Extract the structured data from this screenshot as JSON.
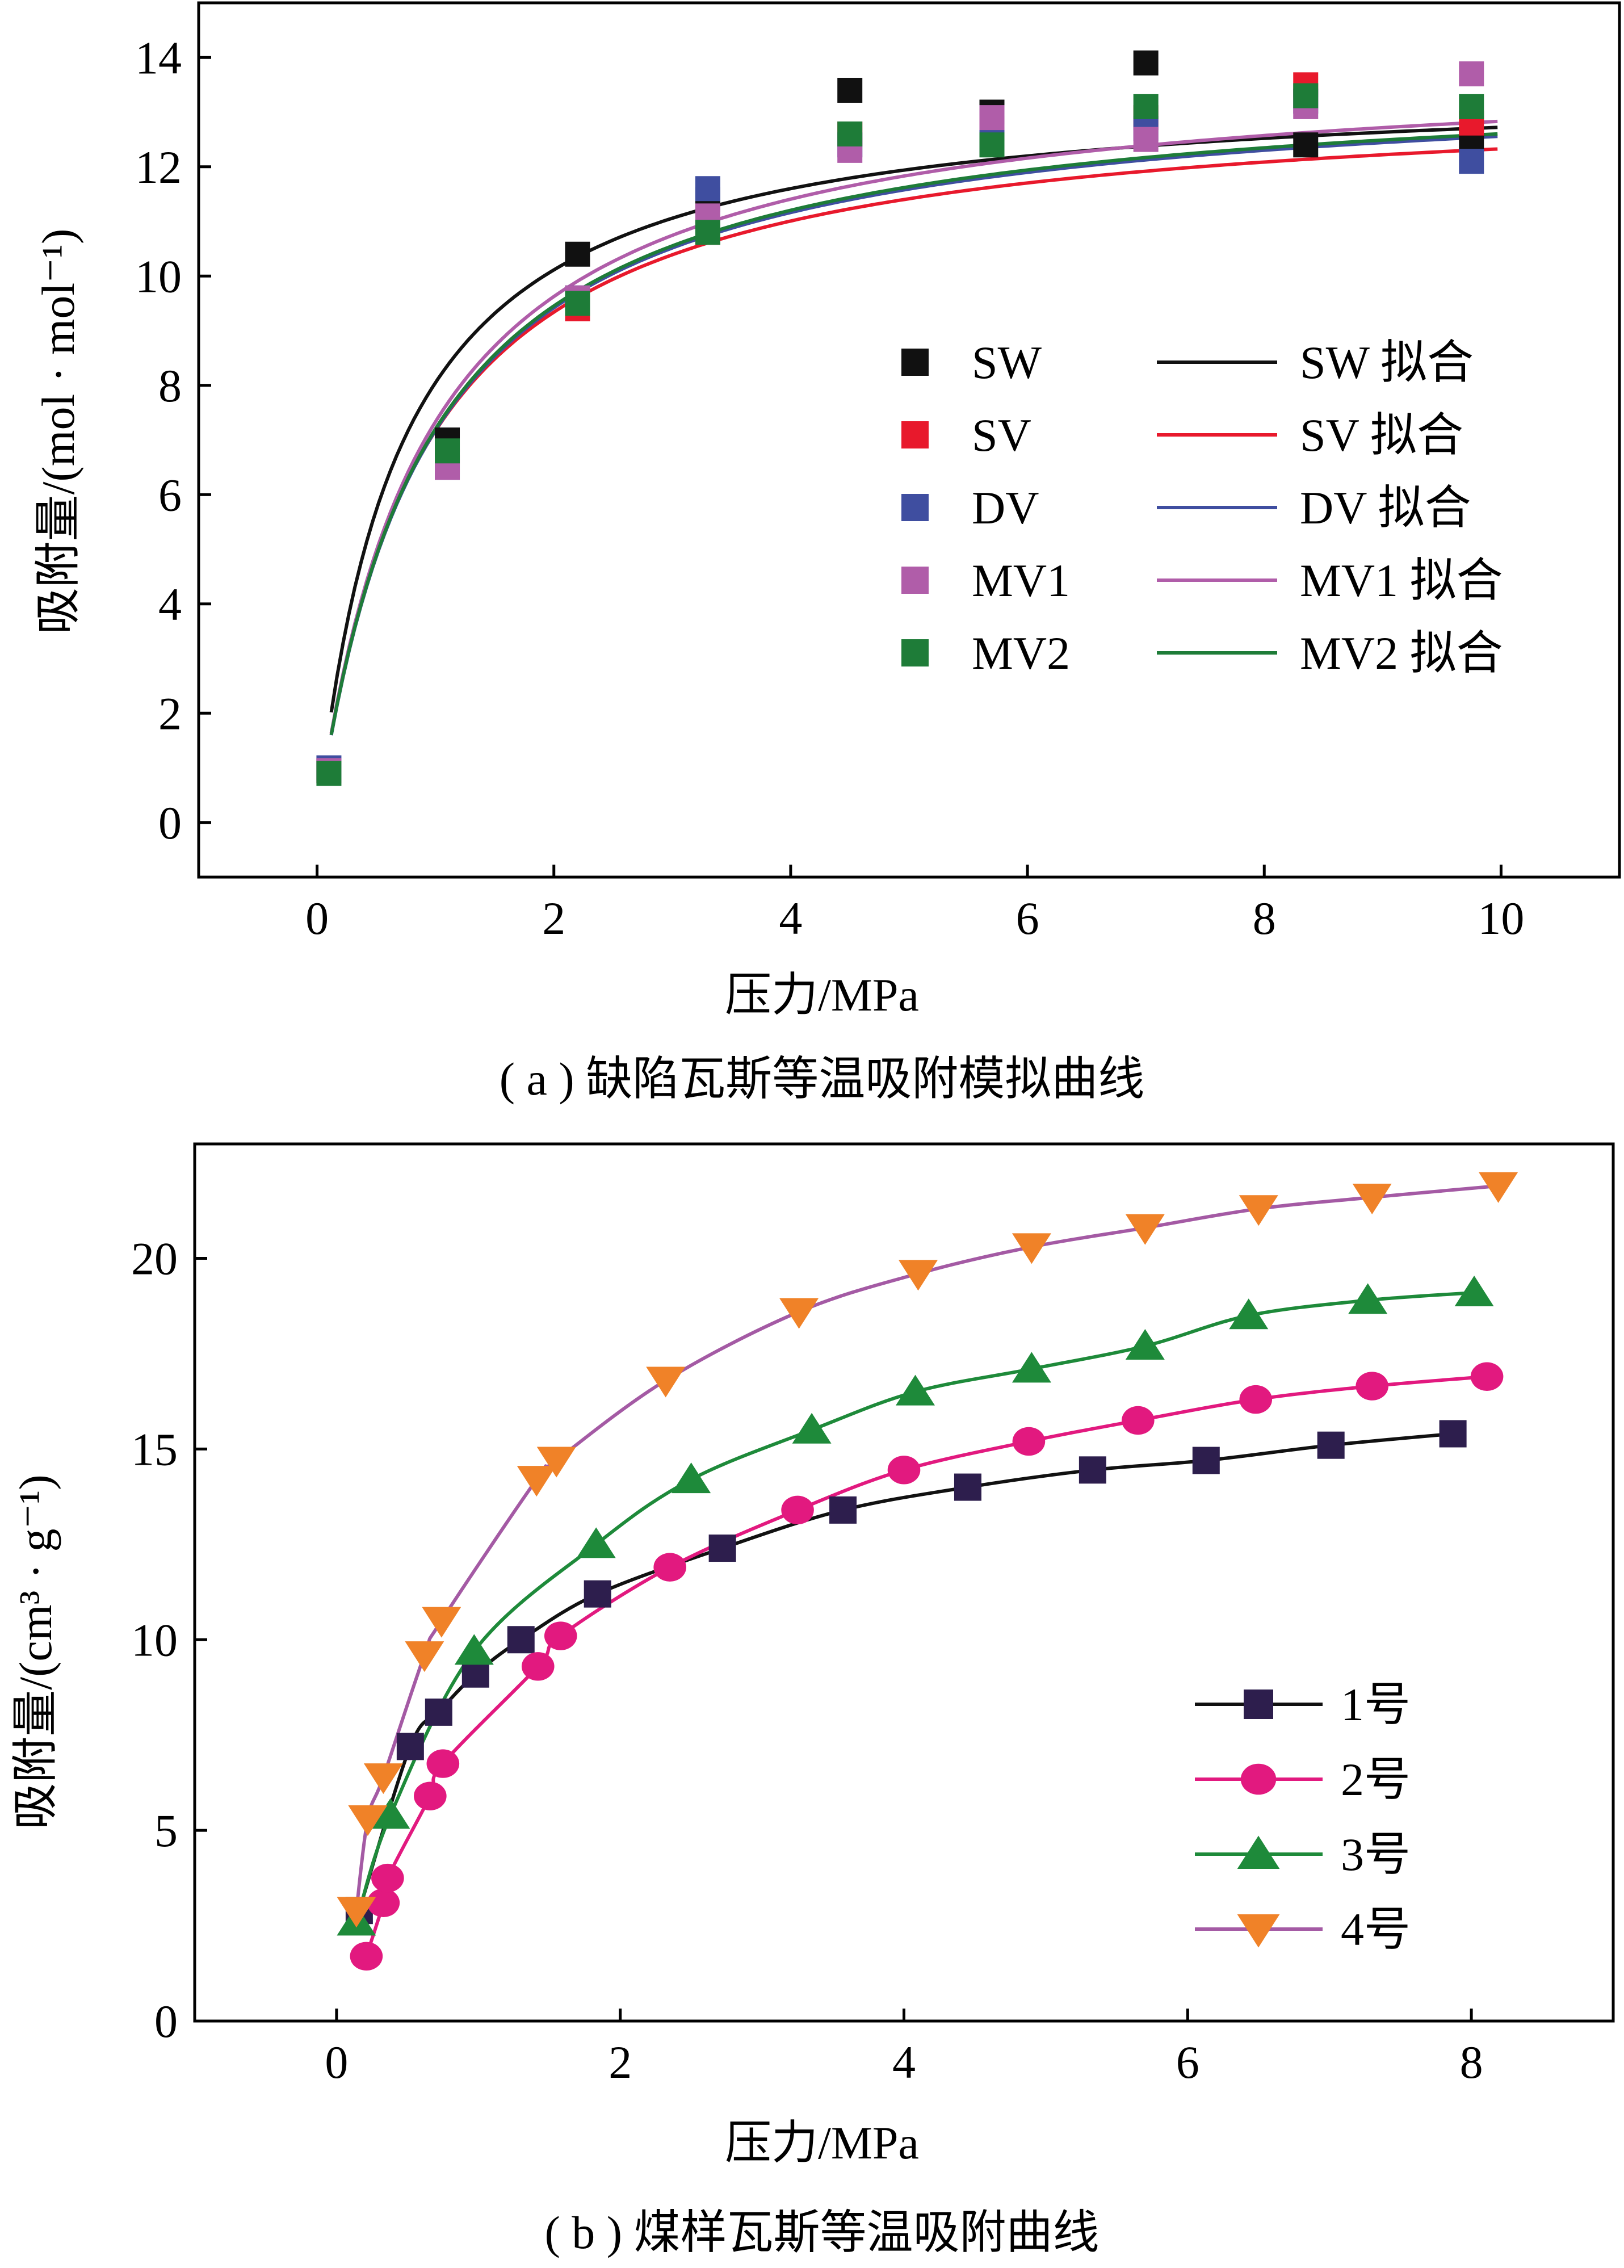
{
  "chart_data": [
    {
      "type": "scatter",
      "ylabel": "吸附量/(mol · mol⁻¹)",
      "xlabel": "压力/MPa",
      "caption": "( a ) 缺陷瓦斯等温吸附模拟曲线",
      "xlim": [
        -1,
        11
      ],
      "ylim": [
        -1,
        15
      ],
      "xticks": [
        0,
        2,
        4,
        6,
        8,
        10
      ],
      "yticks": [
        0,
        2,
        4,
        6,
        8,
        10,
        12,
        14
      ],
      "legend_position": "center-right",
      "x": [
        0.1,
        1.1,
        2.2,
        3.3,
        4.5,
        5.7,
        7.0,
        8.35,
        9.75
      ],
      "series": [
        {
          "name": "SW",
          "color": "#111111",
          "values": [
            0.95,
            7.0,
            10.4,
            11.4,
            13.4,
            13.0,
            13.9,
            12.4,
            12.5
          ]
        },
        {
          "name": "SV",
          "color": "#e8192c",
          "values": [
            0.95,
            6.6,
            9.4,
            10.8,
            12.6,
            12.7,
            12.9,
            13.5,
            12.8
          ]
        },
        {
          "name": "DV",
          "color": "#3f4ea0",
          "values": [
            1.0,
            6.5,
            9.6,
            11.6,
            12.4,
            12.5,
            12.7,
            13.2,
            12.1
          ]
        },
        {
          "name": "MV1",
          "color": "#b05da9",
          "values": [
            0.95,
            6.5,
            9.6,
            11.1,
            12.3,
            12.9,
            12.5,
            13.1,
            13.7
          ]
        },
        {
          "name": "MV2",
          "color": "#1e7c38",
          "values": [
            0.9,
            6.8,
            9.5,
            10.8,
            12.6,
            12.4,
            13.1,
            13.3,
            13.1
          ]
        }
      ],
      "fits": [
        {
          "name": "SW 拟合",
          "color": "#111111",
          "qmax": 13.6,
          "b": 1.45
        },
        {
          "name": "SV 拟合",
          "color": "#e8192c",
          "qmax": 13.4,
          "b": 1.15
        },
        {
          "name": "DV 拟合",
          "color": "#3f4ea0",
          "qmax": 13.7,
          "b": 1.1
        },
        {
          "name": "MV1 拟合",
          "color": "#b05da9",
          "qmax": 14.0,
          "b": 1.1
        },
        {
          "name": "MV2 拟合",
          "color": "#1e7c38",
          "qmax": 13.75,
          "b": 1.1
        }
      ]
    },
    {
      "type": "line",
      "ylabel": "吸附量/(cm³ · g⁻¹)",
      "xlabel": "压力/MPa",
      "caption": "( b ) 煤样瓦斯等温吸附曲线",
      "xlim": [
        -1,
        9
      ],
      "ylim": [
        0,
        23
      ],
      "xticks": [
        0,
        2,
        4,
        6,
        8
      ],
      "yticks": [
        0,
        5,
        10,
        15,
        20
      ],
      "legend_position": "bottom-right",
      "series": [
        {
          "name": "1号",
          "marker": "square",
          "line_color": "#111111",
          "marker_color": "#2d1e4d",
          "x": [
            0.16,
            0.52,
            0.72,
            0.98,
            1.3,
            1.84,
            2.72,
            3.57,
            4.45,
            5.33,
            6.13,
            7.01,
            7.87
          ],
          "y": [
            2.9,
            7.2,
            8.1,
            9.1,
            10.0,
            11.2,
            12.4,
            13.4,
            14.0,
            14.45,
            14.7,
            15.1,
            15.4
          ]
        },
        {
          "name": "2号",
          "marker": "circle",
          "line_color": "#e2197f",
          "marker_color": "#e2197f",
          "x": [
            0.21,
            0.33,
            0.36,
            0.66,
            0.75,
            1.42,
            1.58,
            2.35,
            3.25,
            4.0,
            4.88,
            5.65,
            6.48,
            7.3,
            8.11
          ],
          "y": [
            1.7,
            3.1,
            3.75,
            5.9,
            6.75,
            9.3,
            10.1,
            11.9,
            13.4,
            14.45,
            15.2,
            15.75,
            16.3,
            16.65,
            16.9
          ]
        },
        {
          "name": "3号",
          "marker": "triangle-up",
          "line_color": "#1e8a3a",
          "marker_color": "#1e8a3a",
          "x": [
            0.14,
            0.38,
            0.97,
            1.83,
            2.5,
            3.35,
            4.08,
            4.9,
            5.7,
            6.43,
            7.27,
            8.02
          ],
          "y": [
            2.6,
            5.4,
            9.7,
            12.5,
            14.2,
            15.5,
            16.5,
            17.1,
            17.7,
            18.5,
            18.9,
            19.1
          ]
        },
        {
          "name": "4号",
          "marker": "triangle-down",
          "line_color": "#a45aa4",
          "marker_color": "#f08228",
          "x": [
            0.14,
            0.22,
            0.33,
            0.62,
            0.74,
            1.41,
            1.55,
            2.32,
            3.26,
            4.1,
            4.9,
            5.7,
            6.5,
            7.3,
            8.19
          ],
          "y": [
            2.9,
            5.3,
            6.4,
            9.6,
            10.5,
            14.2,
            14.7,
            16.8,
            18.6,
            19.6,
            20.3,
            20.8,
            21.3,
            21.6,
            21.9
          ]
        }
      ]
    }
  ]
}
